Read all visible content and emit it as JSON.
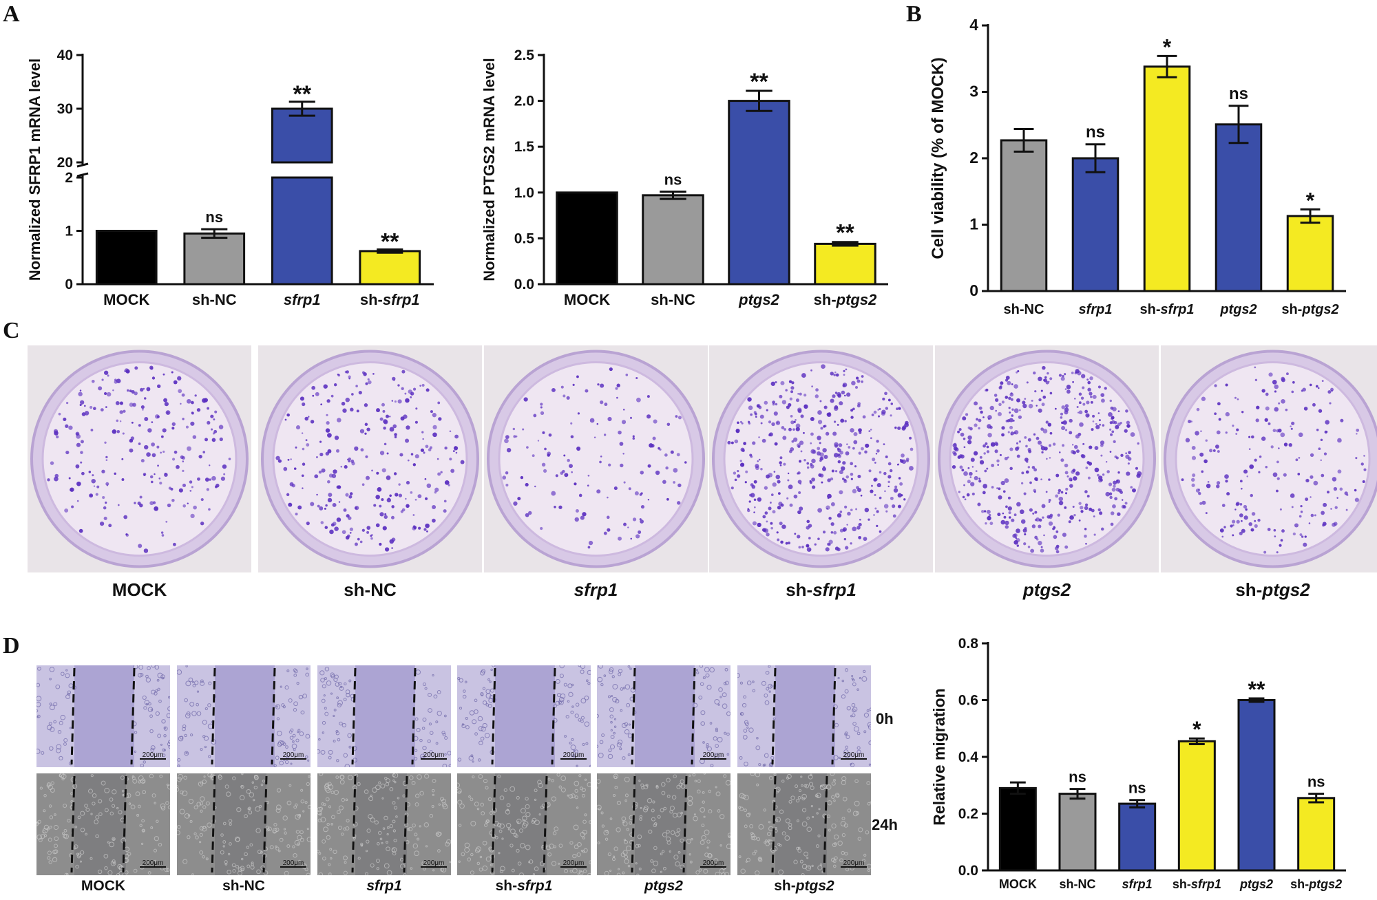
{
  "panels": {
    "a": "A",
    "b": "B",
    "c": "C",
    "d": "D"
  },
  "colors": {
    "black": "#000000",
    "gray": "#9a9a9a",
    "blue": "#3a4ea8",
    "yellow": "#f4ea22",
    "stain": "#5a2ec0",
    "plate_bg": "#efe6f2"
  },
  "chart_data": [
    {
      "id": "A1",
      "type": "bar",
      "ylabel": "Normalized SFRP1 mRNA level",
      "categories": [
        {
          "pre": "",
          "it": "",
          "post": "MOCK"
        },
        {
          "pre": "sh-NC",
          "it": "",
          "post": ""
        },
        {
          "pre": "",
          "it": "sfrp1",
          "post": ""
        },
        {
          "pre": "sh-",
          "it": "sfrp1",
          "post": ""
        }
      ],
      "values": [
        1.0,
        0.95,
        30.0,
        0.62
      ],
      "errors": [
        0,
        0.08,
        1.3,
        0.03
      ],
      "colors": [
        "black",
        "gray",
        "blue",
        "yellow"
      ],
      "annotations": [
        "",
        "ns",
        "**",
        "**"
      ],
      "broken_axis": {
        "lower": [
          0,
          2
        ],
        "upper": [
          20,
          40
        ]
      },
      "yticks_lower": [
        0,
        1,
        2
      ],
      "yticks_upper": [
        20,
        30,
        40
      ]
    },
    {
      "id": "A2",
      "type": "bar",
      "ylabel": "Normalized PTGS2 mRNA level",
      "categories": [
        {
          "pre": "",
          "it": "",
          "post": "MOCK"
        },
        {
          "pre": "sh-NC",
          "it": "",
          "post": ""
        },
        {
          "pre": "",
          "it": "ptgs2",
          "post": ""
        },
        {
          "pre": "sh-",
          "it": "ptgs2",
          "post": ""
        }
      ],
      "values": [
        1.0,
        0.97,
        2.0,
        0.44
      ],
      "errors": [
        0,
        0.04,
        0.11,
        0.02
      ],
      "colors": [
        "black",
        "gray",
        "blue",
        "yellow"
      ],
      "annotations": [
        "",
        "ns",
        "**",
        "**"
      ],
      "ylim": [
        0,
        2.5
      ],
      "yticks": [
        "0.0",
        "0.5",
        "1.0",
        "1.5",
        "2.0",
        "2.5"
      ]
    },
    {
      "id": "B",
      "type": "bar",
      "ylabel": "Cell viability (% of MOCK)",
      "categories": [
        {
          "pre": "sh-NC",
          "it": "",
          "post": ""
        },
        {
          "pre": "",
          "it": "sfrp1",
          "post": ""
        },
        {
          "pre": "sh-",
          "it": "sfrp1",
          "post": ""
        },
        {
          "pre": "",
          "it": "ptgs2",
          "post": ""
        },
        {
          "pre": "sh-",
          "it": "ptgs2",
          "post": ""
        }
      ],
      "values": [
        2.27,
        2.0,
        3.38,
        2.51,
        1.13
      ],
      "errors": [
        0.17,
        0.21,
        0.16,
        0.28,
        0.1
      ],
      "colors": [
        "gray",
        "blue",
        "yellow",
        "blue",
        "yellow"
      ],
      "annotations": [
        "",
        "ns",
        "*",
        "ns",
        "*"
      ],
      "ylim": [
        0,
        4
      ],
      "yticks": [
        "0",
        "1",
        "2",
        "3",
        "4"
      ]
    },
    {
      "id": "D",
      "type": "bar",
      "ylabel": "Relative migration",
      "categories": [
        {
          "pre": "",
          "it": "",
          "post": "MOCK"
        },
        {
          "pre": "sh-NC",
          "it": "",
          "post": ""
        },
        {
          "pre": "",
          "it": "sfrp1",
          "post": ""
        },
        {
          "pre": "sh-",
          "it": "sfrp1",
          "post": ""
        },
        {
          "pre": "",
          "it": "ptgs2",
          "post": ""
        },
        {
          "pre": "sh-",
          "it": "ptgs2",
          "post": ""
        }
      ],
      "values": [
        0.29,
        0.27,
        0.235,
        0.455,
        0.6,
        0.255
      ],
      "errors": [
        0.02,
        0.017,
        0.013,
        0.01,
        0.006,
        0.015
      ],
      "colors": [
        "black",
        "gray",
        "blue",
        "yellow",
        "blue",
        "yellow"
      ],
      "annotations": [
        "",
        "ns",
        "ns",
        "*",
        "**",
        "ns"
      ],
      "ylim": [
        0,
        0.8
      ],
      "yticks": [
        "0.0",
        "0.2",
        "0.4",
        "0.6",
        "0.8"
      ]
    }
  ],
  "plates": {
    "labels": [
      {
        "pre": "",
        "it": "",
        "post": "MOCK"
      },
      {
        "pre": "sh-NC",
        "it": "",
        "post": ""
      },
      {
        "pre": "",
        "it": "sfrp1",
        "post": ""
      },
      {
        "pre": "sh-",
        "it": "sfrp1",
        "post": ""
      },
      {
        "pre": "",
        "it": "ptgs2",
        "post": ""
      },
      {
        "pre": "sh-",
        "it": "ptgs2",
        "post": ""
      }
    ],
    "colony_density": [
      230,
      260,
      140,
      420,
      460,
      210
    ]
  },
  "scratch": {
    "scale_bar": "200μm",
    "times": [
      "0h",
      "24h"
    ],
    "labels": [
      {
        "pre": "",
        "it": "",
        "post": "MOCK"
      },
      {
        "pre": "sh-NC",
        "it": "",
        "post": ""
      },
      {
        "pre": "",
        "it": "sfrp1",
        "post": ""
      },
      {
        "pre": "sh-",
        "it": "sfrp1",
        "post": ""
      },
      {
        "pre": "",
        "it": "ptgs2",
        "post": ""
      },
      {
        "pre": "sh-",
        "it": "ptgs2",
        "post": ""
      }
    ]
  }
}
